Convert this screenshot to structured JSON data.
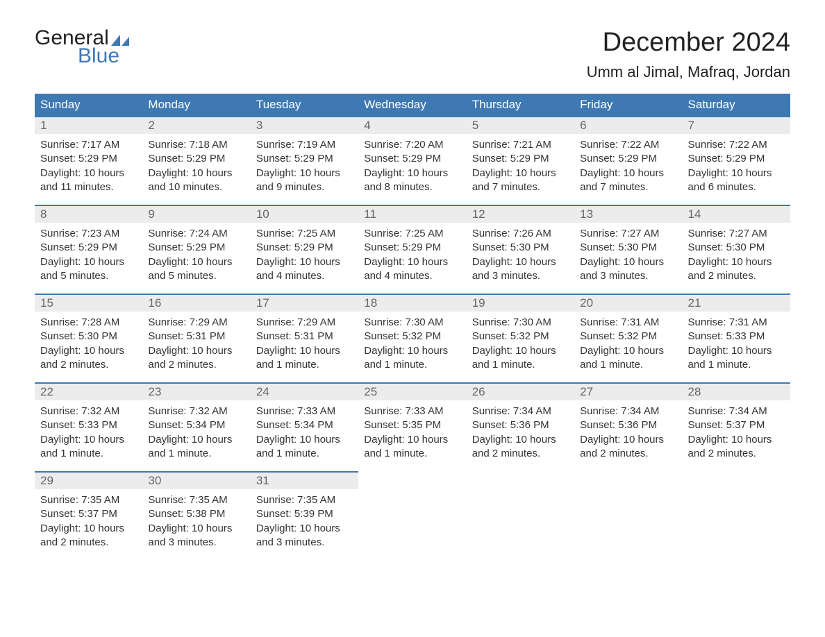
{
  "logo": {
    "word1": "General",
    "word2": "Blue",
    "sail_color": "#3e79b4"
  },
  "title": "December 2024",
  "location": "Umm al Jimal, Mafraq, Jordan",
  "colors": {
    "header_bg": "#3e79b4",
    "header_text": "#ffffff",
    "daynum_bg": "#ececec",
    "week_border": "#3e79b4",
    "body_text": "#333333"
  },
  "weekdays": [
    "Sunday",
    "Monday",
    "Tuesday",
    "Wednesday",
    "Thursday",
    "Friday",
    "Saturday"
  ],
  "weeks": [
    [
      {
        "n": "1",
        "sunrise": "7:17 AM",
        "sunset": "5:29 PM",
        "daylight": "10 hours and 11 minutes."
      },
      {
        "n": "2",
        "sunrise": "7:18 AM",
        "sunset": "5:29 PM",
        "daylight": "10 hours and 10 minutes."
      },
      {
        "n": "3",
        "sunrise": "7:19 AM",
        "sunset": "5:29 PM",
        "daylight": "10 hours and 9 minutes."
      },
      {
        "n": "4",
        "sunrise": "7:20 AM",
        "sunset": "5:29 PM",
        "daylight": "10 hours and 8 minutes."
      },
      {
        "n": "5",
        "sunrise": "7:21 AM",
        "sunset": "5:29 PM",
        "daylight": "10 hours and 7 minutes."
      },
      {
        "n": "6",
        "sunrise": "7:22 AM",
        "sunset": "5:29 PM",
        "daylight": "10 hours and 7 minutes."
      },
      {
        "n": "7",
        "sunrise": "7:22 AM",
        "sunset": "5:29 PM",
        "daylight": "10 hours and 6 minutes."
      }
    ],
    [
      {
        "n": "8",
        "sunrise": "7:23 AM",
        "sunset": "5:29 PM",
        "daylight": "10 hours and 5 minutes."
      },
      {
        "n": "9",
        "sunrise": "7:24 AM",
        "sunset": "5:29 PM",
        "daylight": "10 hours and 5 minutes."
      },
      {
        "n": "10",
        "sunrise": "7:25 AM",
        "sunset": "5:29 PM",
        "daylight": "10 hours and 4 minutes."
      },
      {
        "n": "11",
        "sunrise": "7:25 AM",
        "sunset": "5:29 PM",
        "daylight": "10 hours and 4 minutes."
      },
      {
        "n": "12",
        "sunrise": "7:26 AM",
        "sunset": "5:30 PM",
        "daylight": "10 hours and 3 minutes."
      },
      {
        "n": "13",
        "sunrise": "7:27 AM",
        "sunset": "5:30 PM",
        "daylight": "10 hours and 3 minutes."
      },
      {
        "n": "14",
        "sunrise": "7:27 AM",
        "sunset": "5:30 PM",
        "daylight": "10 hours and 2 minutes."
      }
    ],
    [
      {
        "n": "15",
        "sunrise": "7:28 AM",
        "sunset": "5:30 PM",
        "daylight": "10 hours and 2 minutes."
      },
      {
        "n": "16",
        "sunrise": "7:29 AM",
        "sunset": "5:31 PM",
        "daylight": "10 hours and 2 minutes."
      },
      {
        "n": "17",
        "sunrise": "7:29 AM",
        "sunset": "5:31 PM",
        "daylight": "10 hours and 1 minute."
      },
      {
        "n": "18",
        "sunrise": "7:30 AM",
        "sunset": "5:32 PM",
        "daylight": "10 hours and 1 minute."
      },
      {
        "n": "19",
        "sunrise": "7:30 AM",
        "sunset": "5:32 PM",
        "daylight": "10 hours and 1 minute."
      },
      {
        "n": "20",
        "sunrise": "7:31 AM",
        "sunset": "5:32 PM",
        "daylight": "10 hours and 1 minute."
      },
      {
        "n": "21",
        "sunrise": "7:31 AM",
        "sunset": "5:33 PM",
        "daylight": "10 hours and 1 minute."
      }
    ],
    [
      {
        "n": "22",
        "sunrise": "7:32 AM",
        "sunset": "5:33 PM",
        "daylight": "10 hours and 1 minute."
      },
      {
        "n": "23",
        "sunrise": "7:32 AM",
        "sunset": "5:34 PM",
        "daylight": "10 hours and 1 minute."
      },
      {
        "n": "24",
        "sunrise": "7:33 AM",
        "sunset": "5:34 PM",
        "daylight": "10 hours and 1 minute."
      },
      {
        "n": "25",
        "sunrise": "7:33 AM",
        "sunset": "5:35 PM",
        "daylight": "10 hours and 1 minute."
      },
      {
        "n": "26",
        "sunrise": "7:34 AM",
        "sunset": "5:36 PM",
        "daylight": "10 hours and 2 minutes."
      },
      {
        "n": "27",
        "sunrise": "7:34 AM",
        "sunset": "5:36 PM",
        "daylight": "10 hours and 2 minutes."
      },
      {
        "n": "28",
        "sunrise": "7:34 AM",
        "sunset": "5:37 PM",
        "daylight": "10 hours and 2 minutes."
      }
    ],
    [
      {
        "n": "29",
        "sunrise": "7:35 AM",
        "sunset": "5:37 PM",
        "daylight": "10 hours and 2 minutes."
      },
      {
        "n": "30",
        "sunrise": "7:35 AM",
        "sunset": "5:38 PM",
        "daylight": "10 hours and 3 minutes."
      },
      {
        "n": "31",
        "sunrise": "7:35 AM",
        "sunset": "5:39 PM",
        "daylight": "10 hours and 3 minutes."
      },
      null,
      null,
      null,
      null
    ]
  ],
  "labels": {
    "sunrise": "Sunrise:",
    "sunset": "Sunset:",
    "daylight": "Daylight:"
  }
}
